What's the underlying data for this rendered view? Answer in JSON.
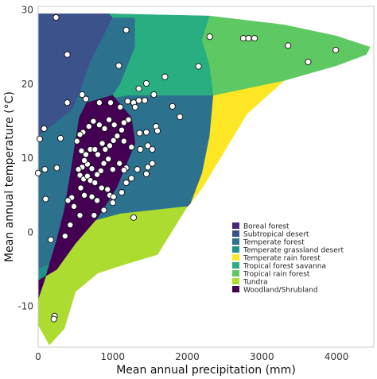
{
  "chart_data": {
    "type": "scatter",
    "title": "",
    "xlabel": "Mean annual precipitation (mm)",
    "ylabel": "Mean annual temperature (°C)",
    "xlim": [
      0,
      4500
    ],
    "ylim": [
      -15.5,
      30.5
    ],
    "xticks": [
      0,
      1000,
      2000,
      3000,
      4000
    ],
    "yticks": [
      -10,
      0,
      10,
      20,
      30
    ],
    "grid": false,
    "legend_position": "lower-right",
    "biomes": [
      {
        "name": "Boreal forest",
        "color": "#482878",
        "polygon": [
          [
            250,
            -5
          ],
          [
            550,
            1
          ],
          [
            1100,
            2.5
          ],
          [
            2000,
            3.5
          ],
          [
            2050,
            4
          ],
          [
            1700,
            2
          ],
          [
            1300,
            0.5
          ],
          [
            800,
            -1
          ],
          [
            500,
            -2.5
          ]
        ]
      },
      {
        "name": "Subtropical desert",
        "color": "#3b528b",
        "polygon": [
          [
            0,
            29.5
          ],
          [
            950,
            29.5
          ],
          [
            1000,
            29
          ],
          [
            700,
            23
          ],
          [
            600,
            20
          ],
          [
            500,
            17.5
          ],
          [
            450,
            16.5
          ],
          [
            0,
            12
          ]
        ]
      },
      {
        "name": "Temperate forest",
        "color": "#2c728e",
        "polygon": [
          [
            0,
            13
          ],
          [
            450,
            16.5
          ],
          [
            500,
            17.5
          ],
          [
            600,
            20
          ],
          [
            700,
            23
          ],
          [
            1000,
            29
          ],
          [
            1300,
            29
          ],
          [
            1300,
            25
          ],
          [
            1100,
            20
          ],
          [
            1000,
            18.5
          ],
          [
            900,
            18
          ],
          [
            1200,
            18.5
          ],
          [
            1600,
            18.5
          ],
          [
            1900,
            18.5
          ],
          [
            2350,
            18.5
          ],
          [
            2300,
            13
          ],
          [
            2200,
            8
          ],
          [
            2050,
            4
          ],
          [
            1700,
            2
          ],
          [
            1300,
            0.5
          ],
          [
            800,
            -1
          ],
          [
            500,
            -2.5
          ],
          [
            0,
            -5
          ]
        ]
      },
      {
        "name": "Temperate grassland desert",
        "color": "#21918c",
        "polygon": [
          [
            0,
            -5
          ],
          [
            500,
            -2.5
          ],
          [
            250,
            -5
          ],
          [
            0,
            -6.5
          ]
        ]
      },
      {
        "name": "Temperate rain forest",
        "color": "#fde725",
        "polygon": [
          [
            2050,
            4
          ],
          [
            2200,
            8
          ],
          [
            2300,
            13
          ],
          [
            2350,
            18.5
          ],
          [
            3300,
            20.5
          ],
          [
            2800,
            16
          ],
          [
            2500,
            11
          ],
          [
            2200,
            6
          ]
        ]
      },
      {
        "name": "Tropical forest savanna",
        "color": "#28ae80",
        "polygon": [
          [
            950,
            29.5
          ],
          [
            2300,
            29.2
          ],
          [
            2200,
            26
          ],
          [
            2300,
            22.5
          ],
          [
            2350,
            18.5
          ],
          [
            1900,
            18.5
          ],
          [
            1600,
            18.5
          ],
          [
            1200,
            18.5
          ],
          [
            900,
            18
          ],
          [
            1000,
            18.5
          ],
          [
            1100,
            20
          ],
          [
            1300,
            25
          ],
          [
            1300,
            29
          ],
          [
            1000,
            29
          ]
        ]
      },
      {
        "name": "Tropical rain forest",
        "color": "#5ec962",
        "polygon": [
          [
            2300,
            29.2
          ],
          [
            3300,
            28
          ],
          [
            4000,
            26.5
          ],
          [
            4450,
            25
          ],
          [
            4400,
            24
          ],
          [
            4000,
            22.5
          ],
          [
            3300,
            20.5
          ],
          [
            2350,
            18.5
          ],
          [
            2300,
            22.5
          ],
          [
            2200,
            26
          ]
        ]
      },
      {
        "name": "Tundra",
        "color": "#addc30",
        "polygon": [
          [
            0,
            -9
          ],
          [
            0,
            -12.5
          ],
          [
            150,
            -15.2
          ],
          [
            350,
            -13
          ],
          [
            500,
            -8
          ],
          [
            800,
            -5.5
          ],
          [
            1200,
            -4.2
          ],
          [
            1600,
            -3
          ],
          [
            2000,
            3.5
          ],
          [
            1100,
            2.5
          ],
          [
            550,
            1
          ],
          [
            250,
            -5
          ],
          [
            0,
            -6.5
          ]
        ]
      },
      {
        "name": "Woodland/Shrubland",
        "color": "#440154",
        "polygon": [
          [
            0,
            -9
          ],
          [
            100,
            -6
          ],
          [
            250,
            -1
          ],
          [
            350,
            3
          ],
          [
            450,
            9
          ],
          [
            550,
            15.5
          ],
          [
            650,
            17.5
          ],
          [
            1000,
            18.5
          ],
          [
            1250,
            15.5
          ],
          [
            1300,
            12
          ],
          [
            1050,
            6
          ],
          [
            800,
            2
          ],
          [
            500,
            -1.5
          ],
          [
            250,
            -5
          ],
          [
            0,
            -6.5
          ]
        ]
      }
    ],
    "points": [
      [
        240,
        29
      ],
      [
        1180,
        27.3
      ],
      [
        2300,
        26.4
      ],
      [
        2750,
        26.2
      ],
      [
        2820,
        26.2
      ],
      [
        2900,
        26.2
      ],
      [
        3350,
        25.2
      ],
      [
        3620,
        23
      ],
      [
        3990,
        24.6
      ],
      [
        390,
        24
      ],
      [
        1080,
        22.5
      ],
      [
        2150,
        22.4
      ],
      [
        1700,
        21
      ],
      [
        1450,
        20.1
      ],
      [
        1350,
        19.4
      ],
      [
        1550,
        18.6
      ],
      [
        1800,
        17
      ],
      [
        390,
        17.5
      ],
      [
        590,
        18.6
      ],
      [
        640,
        18
      ],
      [
        820,
        17.5
      ],
      [
        970,
        17.5
      ],
      [
        1100,
        16.9
      ],
      [
        1200,
        17.7
      ],
      [
        1280,
        17.5
      ],
      [
        1350,
        17.8
      ],
      [
        1430,
        17.8
      ],
      [
        1300,
        16.9
      ],
      [
        1900,
        15.6
      ],
      [
        1580,
        14.3
      ],
      [
        1450,
        13.5
      ],
      [
        1360,
        13.4
      ],
      [
        1210,
        15.2
      ],
      [
        1150,
        14.8
      ],
      [
        1120,
        13.8
      ],
      [
        1020,
        14.5
      ],
      [
        950,
        15.2
      ],
      [
        890,
        14
      ],
      [
        820,
        14.5
      ],
      [
        740,
        15
      ],
      [
        680,
        14.3
      ],
      [
        600,
        13.5
      ],
      [
        560,
        13.2
      ],
      [
        520,
        12.3
      ],
      [
        580,
        11
      ],
      [
        640,
        10.5
      ],
      [
        700,
        11.2
      ],
      [
        760,
        11.2
      ],
      [
        800,
        10.5
      ],
      [
        860,
        12
      ],
      [
        900,
        11.2
      ],
      [
        960,
        11.7
      ],
      [
        1010,
        12.4
      ],
      [
        1060,
        13
      ],
      [
        1150,
        12.3
      ],
      [
        1250,
        11.5
      ],
      [
        1370,
        11.2
      ],
      [
        1470,
        11.7
      ],
      [
        1530,
        11.2
      ],
      [
        1600,
        13.7
      ],
      [
        1530,
        9.3
      ],
      [
        1470,
        8.8
      ],
      [
        1450,
        7.9
      ],
      [
        1330,
        8.5
      ],
      [
        1180,
        8.7
      ],
      [
        1150,
        8.4
      ],
      [
        1250,
        7.3
      ],
      [
        1090,
        9.3
      ],
      [
        1000,
        8.5
      ],
      [
        940,
        9.9
      ],
      [
        880,
        9.3
      ],
      [
        840,
        8.3
      ],
      [
        790,
        7.8
      ],
      [
        720,
        8.6
      ],
      [
        660,
        9.2
      ],
      [
        620,
        9.7
      ],
      [
        590,
        8.8
      ],
      [
        540,
        8.5
      ],
      [
        560,
        7.7
      ],
      [
        610,
        7.2
      ],
      [
        660,
        7.6
      ],
      [
        700,
        7
      ],
      [
        760,
        6.7
      ],
      [
        850,
        6
      ],
      [
        930,
        5.8
      ],
      [
        960,
        5
      ],
      [
        1010,
        4.8
      ],
      [
        1120,
        5.4
      ],
      [
        1180,
        6.7
      ],
      [
        790,
        4.3
      ],
      [
        720,
        4.8
      ],
      [
        620,
        5
      ],
      [
        570,
        6
      ],
      [
        450,
        4.7
      ],
      [
        400,
        4.3
      ],
      [
        480,
        3.5
      ],
      [
        560,
        2.3
      ],
      [
        750,
        2.3
      ],
      [
        1280,
        2
      ],
      [
        1000,
        4
      ],
      [
        880,
        3
      ],
      [
        80,
        14
      ],
      [
        20,
        12.6
      ],
      [
        0,
        8
      ],
      [
        90,
        8.5
      ],
      [
        250,
        8.7
      ],
      [
        300,
        12.7
      ],
      [
        100,
        4.5
      ],
      [
        430,
        1
      ],
      [
        360,
        -0.5
      ],
      [
        170,
        -1
      ],
      [
        220,
        -11.3
      ],
      [
        210,
        -11.7
      ]
    ]
  }
}
